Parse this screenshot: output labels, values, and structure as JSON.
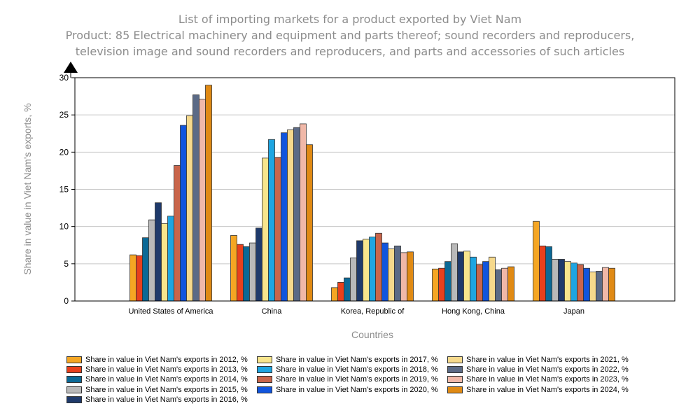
{
  "chart_data": {
    "type": "bar",
    "title": "List of importing markets for a product exported by Viet Nam",
    "subtitle_line1": "Product: 85 Electrical machinery and equipment and parts thereof; sound recorders and reproducers,",
    "subtitle_line2": "television image and sound recorders and reproducers, and parts and accessories of such articles",
    "xlabel": "Countries",
    "ylabel": "Share in value in Viet Nam's exports, %",
    "ylim": [
      0,
      30
    ],
    "yticks": [
      0,
      5,
      10,
      15,
      20,
      25,
      30
    ],
    "categories": [
      "United States of America",
      "China",
      "Korea, Republic of",
      "Hong Kong, China",
      "Japan"
    ],
    "series": [
      {
        "name": "Share in value in Viet Nam's exports in 2012, %",
        "color": "#f5a623",
        "values": [
          6.2,
          8.8,
          1.8,
          4.3,
          10.7
        ]
      },
      {
        "name": "Share in value in Viet Nam's exports in 2013, %",
        "color": "#e8401c",
        "values": [
          6.1,
          7.6,
          2.5,
          4.4,
          7.4
        ]
      },
      {
        "name": "Share in value in Viet Nam's exports in 2014, %",
        "color": "#0b6996",
        "values": [
          8.5,
          7.3,
          3.1,
          5.3,
          7.3
        ]
      },
      {
        "name": "Share in value in Viet Nam's exports in 2015, %",
        "color": "#b9b9b9",
        "values": [
          10.9,
          7.8,
          5.8,
          7.7,
          5.6
        ]
      },
      {
        "name": "Share in value in Viet Nam's exports in 2016, %",
        "color": "#1f3a6b",
        "values": [
          13.2,
          9.8,
          8.1,
          6.6,
          5.6
        ]
      },
      {
        "name": "Share in value in Viet Nam's exports in 2017, %",
        "color": "#f8e58c",
        "values": [
          10.4,
          19.2,
          8.3,
          6.7,
          5.3
        ]
      },
      {
        "name": "Share in value in Viet Nam's exports in 2018, %",
        "color": "#1ea5e1",
        "values": [
          11.4,
          21.7,
          8.6,
          5.9,
          5.1
        ]
      },
      {
        "name": "Share in value in Viet Nam's exports in 2019, %",
        "color": "#c9654a",
        "values": [
          18.2,
          19.3,
          9.1,
          4.9,
          4.9
        ]
      },
      {
        "name": "Share in value in Viet Nam's exports in 2020, %",
        "color": "#1155dd",
        "values": [
          23.6,
          22.6,
          7.8,
          5.3,
          4.4
        ]
      },
      {
        "name": "Share in value in Viet Nam's exports in 2021, %",
        "color": "#f6d98c",
        "values": [
          24.9,
          23.0,
          7.0,
          5.9,
          3.9
        ]
      },
      {
        "name": "Share in value in Viet Nam's exports in 2022, %",
        "color": "#5b6a86",
        "values": [
          27.7,
          23.3,
          7.4,
          4.2,
          4.0
        ]
      },
      {
        "name": "Share in value in Viet Nam's exports in 2023, %",
        "color": "#f0b8a8",
        "values": [
          27.1,
          23.8,
          6.5,
          4.4,
          4.5
        ]
      },
      {
        "name": "Share in value in Viet Nam's exports in 2024, %",
        "color": "#e08a14",
        "values": [
          29.0,
          21.0,
          6.6,
          4.6,
          4.4
        ]
      }
    ],
    "legend_position": "bottom",
    "grid": true
  }
}
